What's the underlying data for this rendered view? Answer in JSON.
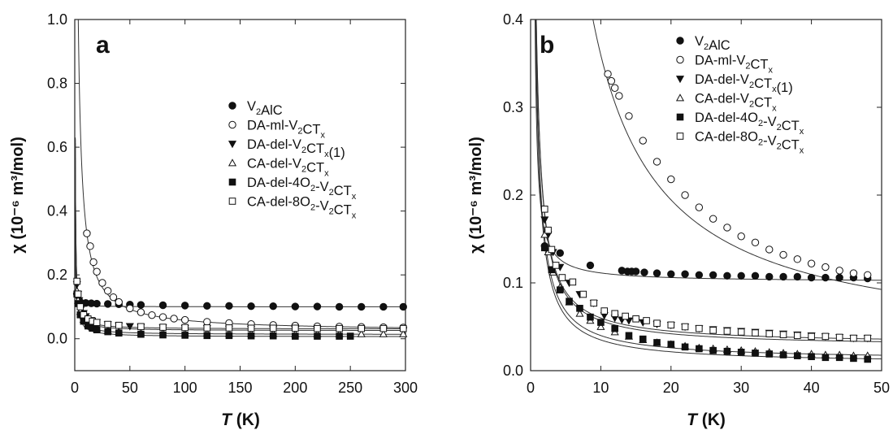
{
  "panels": [
    {
      "panel_label": "a",
      "xaxis": {
        "label_italic": "T",
        "label_rest": " (K)"
      },
      "yaxis": {
        "label": "χ (10⁻⁶ m³/mol)"
      },
      "legend": [
        {
          "base": "V",
          "sub1": "2",
          "mid": "AlC",
          "sub2": "",
          "tail": "",
          "marker": "filled-circle"
        },
        {
          "base": "DA-ml-V",
          "sub1": "2",
          "mid": "CT",
          "sub2": "x",
          "tail": "",
          "marker": "open-circle"
        },
        {
          "base": "DA-del-V",
          "sub1": "2",
          "mid": "CT",
          "sub2": "x",
          "tail": "(1)",
          "marker": "filled-triangle-down"
        },
        {
          "base": "CA-del-V",
          "sub1": "2",
          "mid": "CT",
          "sub2": "x",
          "tail": "",
          "marker": "open-triangle-up"
        },
        {
          "base": "DA-del-4O",
          "sub1": "2",
          "mid": "-V",
          "sub2": "2",
          "tail": "CT",
          "tail_sub": "x",
          "marker": "filled-square"
        },
        {
          "base": "CA-del-8O",
          "sub1": "2",
          "mid": "-V",
          "sub2": "2",
          "tail": "CT",
          "tail_sub": "x",
          "marker": "open-square"
        }
      ]
    },
    {
      "panel_label": "b",
      "xaxis": {
        "label_italic": "T",
        "label_rest": " (K)"
      },
      "yaxis": {
        "label": "χ (10⁻⁶ m³/mol)"
      },
      "legend": [
        {
          "base": "V",
          "sub1": "2",
          "mid": "AlC",
          "sub2": "",
          "tail": "",
          "marker": "filled-circle"
        },
        {
          "base": "DA-ml-V",
          "sub1": "2",
          "mid": "CT",
          "sub2": "x",
          "tail": "",
          "marker": "open-circle"
        },
        {
          "base": "DA-del-V",
          "sub1": "2",
          "mid": "CT",
          "sub2": "x",
          "tail": "(1)",
          "marker": "filled-triangle-down"
        },
        {
          "base": "CA-del-V",
          "sub1": "2",
          "mid": "CT",
          "sub2": "x",
          "tail": "",
          "marker": "open-triangle-up"
        },
        {
          "base": "DA-del-4O",
          "sub1": "2",
          "mid": "-V",
          "sub2": "2",
          "tail": "CT",
          "tail_sub": "x",
          "marker": "filled-square"
        },
        {
          "base": "CA-del-8O",
          "sub1": "2",
          "mid": "-V",
          "sub2": "2",
          "tail": "CT",
          "tail_sub": "x",
          "marker": "open-square"
        }
      ]
    }
  ],
  "chart_data": [
    {
      "type": "scatter",
      "panel": "a",
      "xlabel": "T (K)",
      "ylabel": "χ (10⁻⁶ m³/mol)",
      "xlim": [
        0,
        300
      ],
      "ylim": [
        -0.1,
        1.0
      ],
      "xticks": [
        0,
        50,
        100,
        150,
        200,
        250,
        300
      ],
      "yticks": [
        0.0,
        0.2,
        0.4,
        0.6,
        0.8,
        1.0
      ],
      "ytick_labels": [
        "0.0",
        "0.2",
        "0.4",
        "0.6",
        "0.8",
        "1.0"
      ],
      "legend_position": "center-right",
      "series": [
        {
          "name": "V2AlC",
          "marker": "filled-circle",
          "x": [
            2,
            5,
            10,
            15,
            20,
            30,
            40,
            50,
            60,
            80,
            100,
            120,
            140,
            160,
            180,
            200,
            220,
            240,
            260,
            280,
            298
          ],
          "y": [
            0.14,
            0.115,
            0.112,
            0.111,
            0.11,
            0.109,
            0.108,
            0.107,
            0.106,
            0.105,
            0.104,
            0.103,
            0.103,
            0.102,
            0.102,
            0.101,
            0.101,
            0.1,
            0.1,
            0.1,
            0.1
          ],
          "fit": {
            "chi0": 0.1,
            "C": 0.05,
            "theta": 0.3
          }
        },
        {
          "name": "DA-ml-V2CTx",
          "marker": "open-circle",
          "x": [
            11,
            14,
            17,
            20,
            25,
            30,
            35,
            40,
            50,
            60,
            70,
            80,
            90,
            100,
            120,
            140,
            160,
            180,
            200,
            220,
            240,
            260,
            280,
            298
          ],
          "y": [
            0.33,
            0.29,
            0.24,
            0.21,
            0.175,
            0.15,
            0.13,
            0.115,
            0.095,
            0.083,
            0.074,
            0.068,
            0.063,
            0.059,
            0.053,
            0.049,
            0.046,
            0.043,
            0.041,
            0.039,
            0.038,
            0.037,
            0.036,
            0.035
          ],
          "fit": {
            "chi0": 0.023,
            "C": 3.5,
            "theta": -0.4
          }
        },
        {
          "name": "DA-del-V2CTx(1)",
          "marker": "filled-triangle-down",
          "x": [
            2,
            3,
            4,
            6,
            8,
            10,
            15,
            20,
            30,
            40,
            50,
            60,
            80,
            100,
            120,
            140,
            160,
            180,
            200,
            220,
            240,
            260,
            280,
            298
          ],
          "y": [
            0.17,
            0.14,
            0.12,
            0.095,
            0.08,
            0.07,
            0.058,
            0.052,
            0.045,
            0.041,
            0.039,
            0.037,
            0.035,
            0.033,
            0.032,
            0.031,
            0.03,
            0.029,
            0.029,
            0.028,
            0.028,
            0.027,
            0.027,
            0.027
          ],
          "fit": {
            "chi0": 0.025,
            "C": 0.3,
            "theta": 0
          }
        },
        {
          "name": "CA-del-V2CTx",
          "marker": "open-triangle-up",
          "x": [
            2,
            3,
            5,
            8,
            12,
            16,
            20,
            30,
            40,
            60,
            80,
            100,
            120,
            140,
            160,
            180,
            200,
            220,
            240,
            260,
            280,
            298
          ],
          "y": [
            0.15,
            0.12,
            0.085,
            0.06,
            0.045,
            0.036,
            0.031,
            0.025,
            0.022,
            0.019,
            0.018,
            0.017,
            0.017,
            0.016,
            0.016,
            0.016,
            0.015,
            0.015,
            0.015,
            0.015,
            0.015,
            0.015
          ],
          "fit": {
            "chi0": 0.013,
            "C": 0.3,
            "theta": 0
          }
        },
        {
          "name": "DA-del-4O2-V2CTx",
          "marker": "filled-square",
          "x": [
            2,
            3,
            5,
            8,
            12,
            16,
            20,
            30,
            40,
            60,
            80,
            100,
            120,
            140,
            160,
            180,
            200,
            220,
            240,
            250
          ],
          "y": [
            0.14,
            0.11,
            0.075,
            0.055,
            0.04,
            0.033,
            0.028,
            0.022,
            0.018,
            0.014,
            0.012,
            0.011,
            0.01,
            0.01,
            0.009,
            0.009,
            0.008,
            0.008,
            0.008,
            0.008
          ],
          "fit": {
            "chi0": 0.006,
            "C": 0.28,
            "theta": 0
          }
        },
        {
          "name": "CA-del-8O2-V2CTx",
          "marker": "open-square",
          "x": [
            2,
            3,
            5,
            8,
            12,
            16,
            20,
            30,
            40,
            60,
            80,
            100,
            120,
            140,
            160,
            180,
            200,
            220,
            240,
            260,
            280,
            298
          ],
          "y": [
            0.18,
            0.14,
            0.1,
            0.075,
            0.062,
            0.055,
            0.051,
            0.045,
            0.042,
            0.038,
            0.036,
            0.035,
            0.034,
            0.034,
            0.033,
            0.033,
            0.033,
            0.032,
            0.032,
            0.032,
            0.032,
            0.032
          ],
          "fit": {
            "chi0": 0.03,
            "C": 0.3,
            "theta": 0
          }
        }
      ]
    },
    {
      "type": "scatter",
      "panel": "b",
      "xlabel": "T (K)",
      "ylabel": "χ (10⁻⁶ m³/mol)",
      "xlim": [
        0,
        50
      ],
      "ylim": [
        0.0,
        0.4
      ],
      "xticks": [
        0,
        10,
        20,
        30,
        40,
        50
      ],
      "yticks": [
        0.0,
        0.1,
        0.2,
        0.3,
        0.4
      ],
      "ytick_labels": [
        "0.0",
        "0.1",
        "0.2",
        "0.3",
        "0.4"
      ],
      "legend_position": "top-right",
      "series": [
        {
          "name": "V2AlC",
          "marker": "filled-circle",
          "x": [
            2,
            4.2,
            8.5,
            13,
            13.8,
            14.4,
            15,
            16.2,
            18,
            20,
            22,
            24,
            26,
            28,
            30,
            32,
            34,
            36,
            38,
            40,
            42,
            44,
            46,
            48
          ],
          "y": [
            0.142,
            0.134,
            0.12,
            0.114,
            0.113,
            0.113,
            0.113,
            0.112,
            0.111,
            0.11,
            0.11,
            0.109,
            0.109,
            0.108,
            0.108,
            0.108,
            0.107,
            0.107,
            0.107,
            0.106,
            0.106,
            0.106,
            0.106,
            0.105
          ],
          "fit": {
            "chi0": 0.101,
            "C": 0.1,
            "theta": 0.3
          }
        },
        {
          "name": "DA-ml-V2CTx",
          "marker": "open-circle",
          "x": [
            11,
            11.5,
            12,
            12.6,
            14,
            16,
            18,
            20,
            22,
            24,
            26,
            28,
            30,
            32,
            34,
            36,
            38,
            40,
            42,
            44,
            46,
            48
          ],
          "y": [
            0.338,
            0.33,
            0.322,
            0.313,
            0.29,
            0.262,
            0.238,
            0.218,
            0.2,
            0.186,
            0.173,
            0.163,
            0.153,
            0.146,
            0.138,
            0.132,
            0.127,
            0.122,
            0.118,
            0.114,
            0.111,
            0.109
          ],
          "fit": {
            "chi0": 0.023,
            "C": 3.5,
            "theta": -0.4
          }
        },
        {
          "name": "DA-del-V2CTx(1)",
          "marker": "filled-triangle-down",
          "x": [
            2,
            2.5,
            3.2,
            4.2,
            5.5,
            7,
            9,
            10.5,
            12,
            13,
            14,
            16,
            18,
            20,
            22,
            24,
            26,
            28,
            30,
            32,
            34,
            36,
            38,
            40,
            42,
            44,
            46,
            48
          ],
          "y": [
            0.172,
            0.155,
            0.135,
            0.118,
            0.1,
            0.087,
            0.077,
            0.063,
            0.06,
            0.058,
            0.057,
            0.055,
            0.053,
            0.052,
            0.05,
            0.048,
            0.047,
            0.046,
            0.045,
            0.044,
            0.043,
            0.042,
            0.041,
            0.04,
            0.039,
            0.038,
            0.037,
            0.037
          ],
          "fit": {
            "chi0": 0.027,
            "C": 0.3,
            "theta": 0
          }
        },
        {
          "name": "CA-del-V2CTx",
          "marker": "open-triangle-up",
          "x": [
            2,
            2.5,
            3.2,
            4.2,
            5.5,
            7,
            8.5,
            10,
            12,
            14,
            16,
            18,
            20,
            22,
            24,
            26,
            28,
            30,
            32,
            34,
            36,
            38,
            40,
            42,
            44,
            46,
            48
          ],
          "y": [
            0.155,
            0.135,
            0.112,
            0.095,
            0.078,
            0.065,
            0.057,
            0.05,
            0.044,
            0.039,
            0.035,
            0.032,
            0.03,
            0.028,
            0.026,
            0.025,
            0.024,
            0.023,
            0.022,
            0.021,
            0.02,
            0.019,
            0.019,
            0.018,
            0.018,
            0.017,
            0.017
          ],
          "fit": {
            "chi0": 0.012,
            "C": 0.28,
            "theta": 0
          }
        },
        {
          "name": "DA-del-4O2-V2CTx",
          "marker": "filled-square",
          "x": [
            2,
            3,
            4.2,
            5.5,
            7,
            8.5,
            10,
            12,
            14,
            16,
            18,
            20,
            22,
            24,
            26,
            28,
            30,
            32,
            34,
            36,
            38,
            40,
            42,
            44,
            46,
            48
          ],
          "y": [
            0.14,
            0.115,
            0.092,
            0.079,
            0.071,
            0.061,
            0.055,
            0.048,
            0.04,
            0.036,
            0.032,
            0.03,
            0.027,
            0.025,
            0.023,
            0.022,
            0.021,
            0.02,
            0.019,
            0.018,
            0.017,
            0.016,
            0.015,
            0.015,
            0.014,
            0.013
          ],
          "fit": {
            "chi0": 0.008,
            "C": 0.27,
            "theta": 0
          }
        },
        {
          "name": "CA-del-8O2-V2CTx",
          "marker": "open-square",
          "x": [
            2,
            2.5,
            3,
            3.6,
            4.5,
            6,
            7.5,
            9,
            10.5,
            12,
            13.5,
            15,
            16.5,
            18,
            20,
            22,
            24,
            26,
            28,
            30,
            32,
            34,
            36,
            38,
            40,
            42,
            44,
            46,
            48
          ],
          "y": [
            0.184,
            0.16,
            0.138,
            0.12,
            0.106,
            0.101,
            0.087,
            0.077,
            0.068,
            0.065,
            0.062,
            0.059,
            0.057,
            0.054,
            0.052,
            0.05,
            0.048,
            0.046,
            0.045,
            0.044,
            0.043,
            0.042,
            0.041,
            0.04,
            0.039,
            0.039,
            0.038,
            0.037,
            0.037
          ],
          "fit": {
            "chi0": 0.03,
            "C": 0.3,
            "theta": 0
          }
        }
      ]
    }
  ]
}
